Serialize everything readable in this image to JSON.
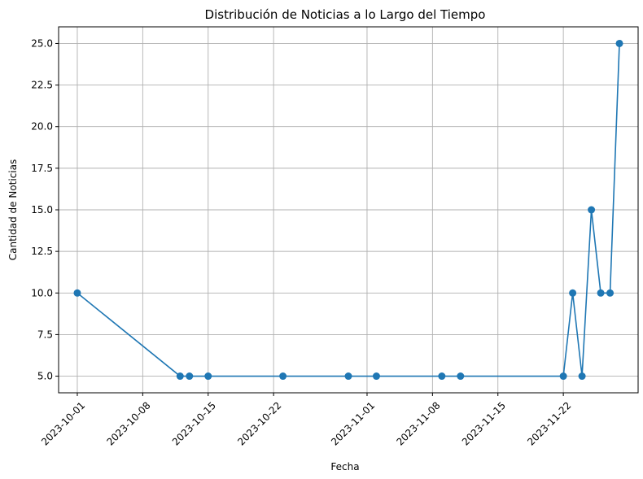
{
  "chart_data": {
    "type": "line",
    "title": "Distribución de Noticias a lo Largo del Tiempo",
    "xlabel": "Fecha",
    "ylabel": "Cantidad de Noticias",
    "x_axis_type": "date",
    "xlim": [
      "2023-09-29",
      "2023-11-30"
    ],
    "ylim": [
      4.0,
      26.0
    ],
    "x_ticks": [
      "2023-10-01",
      "2023-10-08",
      "2023-10-15",
      "2023-10-22",
      "2023-11-01",
      "2023-11-08",
      "2023-11-15",
      "2023-11-22"
    ],
    "y_ticks": [
      "5.0",
      "7.5",
      "10.0",
      "12.5",
      "15.0",
      "17.5",
      "20.0",
      "22.5",
      "25.0"
    ],
    "grid": true,
    "marker": "circle",
    "color": "#1f77b4",
    "series": [
      {
        "x": [
          "2023-10-01",
          "2023-10-12",
          "2023-10-13",
          "2023-10-15",
          "2023-10-23",
          "2023-10-30",
          "2023-11-02",
          "2023-11-09",
          "2023-11-11",
          "2023-11-22",
          "2023-11-23",
          "2023-11-24",
          "2023-11-25",
          "2023-11-26",
          "2023-11-27",
          "2023-11-28"
        ],
        "y": [
          10,
          5,
          5,
          5,
          5,
          5,
          5,
          5,
          5,
          5,
          10,
          5,
          15,
          10,
          10,
          25
        ]
      }
    ]
  }
}
